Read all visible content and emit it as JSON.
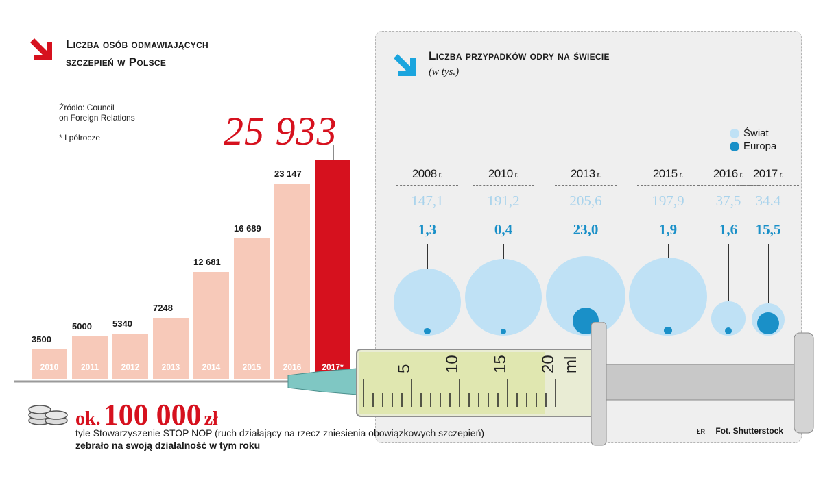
{
  "left": {
    "title_line1": "Liczba osób odmawiających",
    "title_line2": "szczepień  w Polsce",
    "source_line1": "Źródło: Council",
    "source_line2": "on Foreign Relations",
    "note": "* I półrocze",
    "highlight_value": "25 933"
  },
  "right": {
    "title": "Liczba przypadków odry na świecie",
    "subtitle": "(w tys.)"
  },
  "chart_data": [
    {
      "type": "bar",
      "categories": [
        "2010",
        "2011",
        "2012",
        "2013",
        "2014",
        "2015",
        "2016",
        "2017*"
      ],
      "values": [
        3500,
        5000,
        5340,
        7248,
        12681,
        16689,
        23147,
        25933
      ],
      "value_labels": [
        "3500",
        "5000",
        "5340",
        "7248",
        "12 681",
        "16 689",
        "23 147",
        ""
      ],
      "colors": [
        "#f7c9b9",
        "#f7c9b9",
        "#f7c9b9",
        "#f7c9b9",
        "#f7c9b9",
        "#f7c9b9",
        "#f7c9b9",
        "#d6111e"
      ],
      "title": "Liczba osób odmawiających szczepień w Polsce",
      "ylim": [
        0,
        26000
      ]
    },
    {
      "type": "bubble",
      "categories": [
        "2008",
        "2010",
        "2013",
        "2015",
        "2016",
        "2017"
      ],
      "year_suffix": "r.",
      "series": [
        {
          "name": "Świat",
          "values": [
            147.1,
            191.2,
            205.6,
            197.9,
            37.5,
            34.4
          ],
          "labels": [
            "147,1",
            "191,2",
            "205,6",
            "197,9",
            "37,5",
            "34.4"
          ],
          "color": "#bfe1f5"
        },
        {
          "name": "Europa",
          "values": [
            1.3,
            0.4,
            23.0,
            1.9,
            1.6,
            15.5
          ],
          "labels": [
            "1,3",
            "0,4",
            "23,0",
            "1,9",
            "1,6",
            "15,5"
          ],
          "color": "#1a90c8"
        }
      ],
      "title": "Liczba przypadków odry na świecie",
      "subtitle": "(w tys.)"
    }
  ],
  "syringe": {
    "scale_labels": [
      "5",
      "10",
      "15",
      "20"
    ],
    "unit": "ml"
  },
  "footer": {
    "amount_prefix": "ok.",
    "amount_value": "100 000",
    "amount_unit": "zł",
    "line1": "tyle Stowarzyszenie STOP NOP (ruch działający na rzecz zniesienia obowiązkowych szczepień)",
    "line2": "zebrało na swoją działalność w tym roku",
    "credit_mark": "ŁR",
    "credit": "Fot. Shutterstock"
  },
  "colors": {
    "accent_red": "#d6111e",
    "bar_pink": "#f7c9b9",
    "world_blue": "#bfe1f5",
    "europe_blue": "#1a90c8",
    "arrow_cyan": "#1ba5de"
  }
}
